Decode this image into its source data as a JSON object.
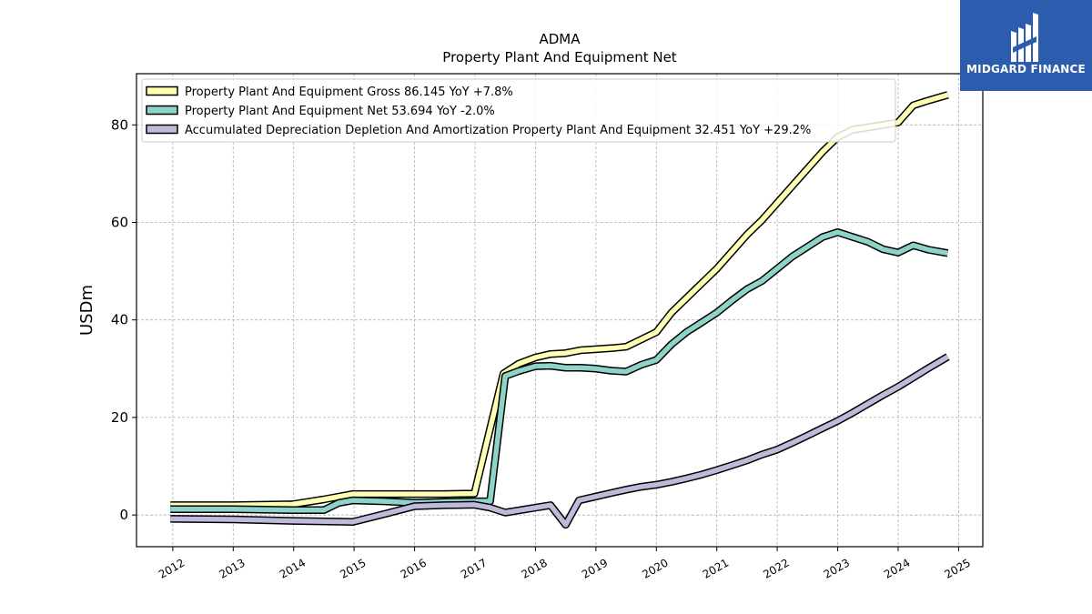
{
  "chart_data": {
    "type": "line",
    "title": "ADMA",
    "subtitle": "Property Plant And Equipment Net",
    "xlabel": "",
    "ylabel": "USDm",
    "xlim": [
      2011.4,
      2025.4
    ],
    "ylim": [
      -6.5,
      90.5
    ],
    "x_ticks": [
      2012,
      2013,
      2014,
      2015,
      2016,
      2017,
      2018,
      2019,
      2020,
      2021,
      2022,
      2023,
      2024,
      2025
    ],
    "y_ticks": [
      0,
      20,
      40,
      60,
      80
    ],
    "grid": true,
    "legend_position": "top-left",
    "series": [
      {
        "name": "Property Plant And Equipment Gross",
        "legend": "Property Plant And Equipment Gross  86.145 YoY +7.8%",
        "color": "#ffffb3",
        "x": [
          2011.96,
          2013.0,
          2013.98,
          2014.5,
          2014.98,
          2015.5,
          2016.0,
          2016.5,
          2016.99,
          2017.47,
          2017.72,
          2018.0,
          2018.25,
          2018.5,
          2018.75,
          2019.0,
          2019.25,
          2019.5,
          2019.75,
          2020.0,
          2020.25,
          2020.5,
          2020.75,
          2021.0,
          2021.25,
          2021.5,
          2021.75,
          2022.0,
          2022.25,
          2022.5,
          2022.75,
          2023.0,
          2023.25,
          2023.5,
          2023.75,
          2024.0,
          2024.25,
          2024.5,
          2024.82
        ],
        "values": [
          2.0,
          2.0,
          2.2,
          3.2,
          4.3,
          4.3,
          4.3,
          4.3,
          4.4,
          29.0,
          31.0,
          32.3,
          33.0,
          33.2,
          33.8,
          34.0,
          34.2,
          34.5,
          36.0,
          37.5,
          41.5,
          44.5,
          47.5,
          50.5,
          54.0,
          57.5,
          60.5,
          64.0,
          67.5,
          71.0,
          74.5,
          77.5,
          79.0,
          79.5,
          80.0,
          80.5,
          84.0,
          85.0,
          86.145
        ]
      },
      {
        "name": "Property Plant And Equipment Net",
        "legend": "Property Plant And Equipment Net  53.694 YoY -2.0%",
        "color": "#8dd3c7",
        "x": [
          2011.96,
          2013.0,
          2013.98,
          2014.5,
          2014.75,
          2014.98,
          2015.5,
          2016.0,
          2016.5,
          2016.99,
          2017.25,
          2017.5,
          2017.72,
          2018.0,
          2018.25,
          2018.5,
          2018.75,
          2019.0,
          2019.25,
          2019.5,
          2019.75,
          2020.0,
          2020.25,
          2020.5,
          2020.75,
          2021.0,
          2021.25,
          2021.5,
          2021.75,
          2022.0,
          2022.25,
          2022.5,
          2022.75,
          2023.0,
          2023.25,
          2023.5,
          2023.75,
          2024.0,
          2024.25,
          2024.5,
          2024.82
        ],
        "values": [
          1.2,
          1.2,
          1.0,
          1.0,
          2.5,
          3.0,
          2.8,
          2.5,
          2.7,
          2.8,
          2.8,
          28.5,
          29.5,
          30.5,
          30.6,
          30.2,
          30.2,
          30.0,
          29.6,
          29.4,
          30.8,
          31.8,
          35.0,
          37.5,
          39.5,
          41.5,
          44.0,
          46.3,
          48.0,
          50.5,
          53.0,
          55.0,
          57.0,
          58.0,
          57.0,
          56.0,
          54.5,
          53.8,
          55.3,
          54.4,
          53.694
        ]
      },
      {
        "name": "Accumulated Depreciation Depletion And Amortization Property Plant And Equipment",
        "legend": "Accumulated Depreciation Depletion And Amortization Property Plant And Equipment  32.451 YoY +29.2%",
        "color": "#bebada",
        "x": [
          2011.96,
          2013.0,
          2013.98,
          2014.98,
          2015.5,
          2016.0,
          2016.5,
          2016.99,
          2017.25,
          2017.5,
          2017.75,
          2018.0,
          2018.25,
          2018.5,
          2018.72,
          2019.0,
          2019.25,
          2019.5,
          2019.75,
          2020.0,
          2020.25,
          2020.5,
          2020.75,
          2021.0,
          2021.25,
          2021.5,
          2021.75,
          2022.0,
          2022.25,
          2022.5,
          2022.75,
          2023.0,
          2023.25,
          2023.5,
          2023.75,
          2024.0,
          2024.25,
          2024.5,
          2024.82
        ],
        "values": [
          -0.8,
          -0.9,
          -1.2,
          -1.4,
          0.2,
          1.8,
          2.0,
          2.1,
          1.5,
          0.5,
          1.0,
          1.5,
          2.0,
          -2.0,
          3.0,
          3.8,
          4.5,
          5.2,
          5.8,
          6.2,
          6.8,
          7.5,
          8.3,
          9.2,
          10.2,
          11.2,
          12.4,
          13.4,
          14.8,
          16.3,
          17.8,
          19.3,
          21.0,
          22.8,
          24.6,
          26.3,
          28.2,
          30.1,
          32.451
        ]
      }
    ]
  },
  "logo": {
    "text": "MIDGARD FINANCE",
    "background": "#2c5cad"
  }
}
